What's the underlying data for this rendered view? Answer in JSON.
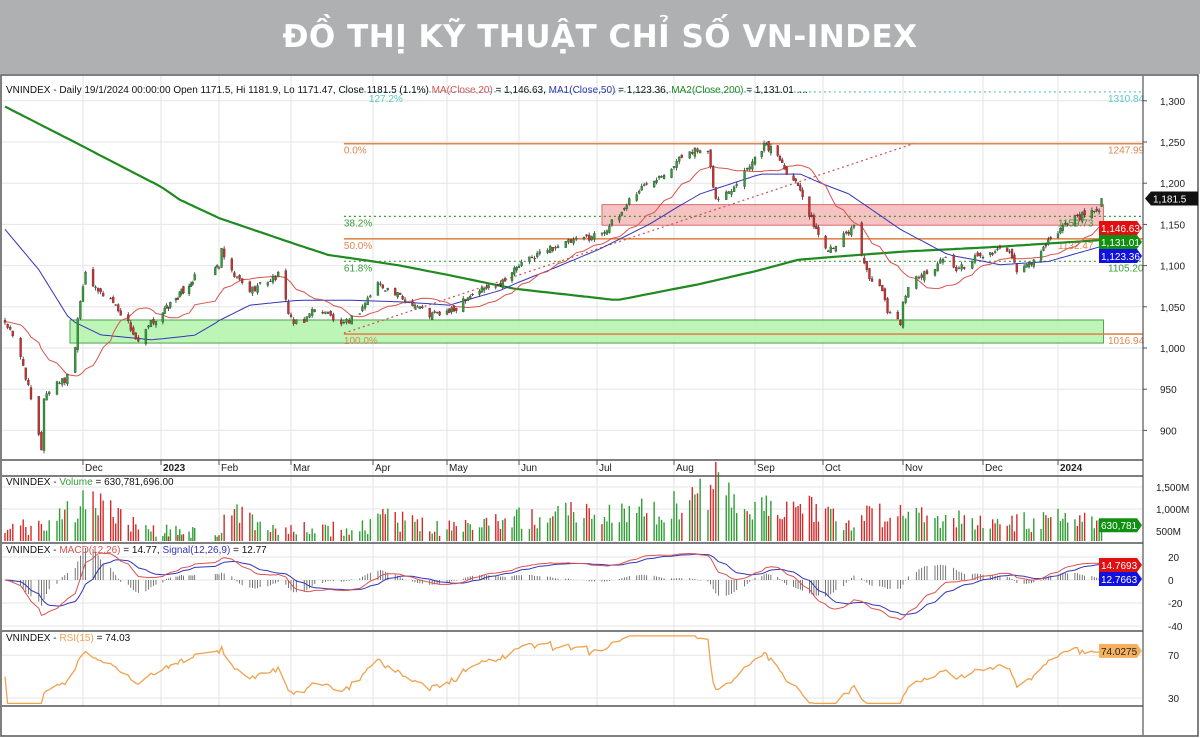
{
  "banner": {
    "title": "ĐỒ THỊ KỸ THUẬT CHỈ SỐ VN-INDEX"
  },
  "colors": {
    "up": "#2f9e35",
    "down": "#d42a2a",
    "ma20": "#d9534f",
    "ma50": "#3434b8",
    "ma200": "#1f8a1f",
    "fib_solid": "#e0864f",
    "fib_dotted": "#3a9a3a",
    "fib_ext": "#5cc8c8",
    "rsi": "#f0a24e",
    "zone_green": "#b6f5b0",
    "zone_red": "#f6bcbc"
  },
  "x_axis": {
    "months": [
      "Dec",
      "2023",
      "Feb",
      "Mar",
      "Apr",
      "May",
      "Jun",
      "Jul",
      "Aug",
      "Sep",
      "Oct",
      "Nov",
      "Dec",
      "2024"
    ]
  },
  "price_panel": {
    "legend": {
      "prefix": "VNINDEX - Daily 19/1/2024 00:00:00 Open 1171.5, Hi 1181.9, Lo 1171.47, Close 1181.5 (1.1%) ",
      "ma": "MA(Close,20)",
      "ma_value": " = 1,146.63, ",
      "ma1": "MA1(Close,50)",
      "ma1_value": " = 1,123.36, ",
      "ma2": "MA2(Close,200)",
      "ma2_value": " = 1,131.01 ...."
    },
    "y_ticks": [
      "1,300",
      "1,250",
      "1,200",
      "1,150",
      "1,100",
      "1,050",
      "1,000",
      "950",
      "900"
    ],
    "tags": {
      "close": "1,181.5",
      "ma20": "1,146.63",
      "ma200": "1,131.01",
      "ma50": "1,123.36"
    }
  },
  "volume_panel": {
    "legend": {
      "prefix": "VNINDEX - ",
      "name": "Volume",
      "value": " = 630,781,696.00"
    },
    "y_ticks": [
      "1,500M",
      "1,000M",
      "500M"
    ],
    "tag": "630,781"
  },
  "macd_panel": {
    "legend": {
      "prefix": "VNINDEX - ",
      "macd": "MACD(12,26)",
      "macd_value": " = 14.77, ",
      "signal": "Signal(12,26,9)",
      "signal_value": " = 12.77"
    },
    "y_ticks": [
      "20",
      "0",
      "-20",
      "-40"
    ],
    "tags": {
      "macd": "14.7693",
      "signal": "12.7663"
    }
  },
  "rsi_panel": {
    "legend": {
      "prefix": "VNINDEX - ",
      "name": "RSI(15)",
      "value": " = 74.03"
    },
    "y_ticks": [
      "70",
      "30"
    ],
    "tag": "74.0275"
  },
  "chart_data": [
    {
      "type": "candlestick",
      "title": "VNINDEX - Daily",
      "x_range": [
        "2022-11-01",
        "2024-01-19"
      ],
      "ylim": [
        870,
        1320
      ],
      "grid": true,
      "last_bar": {
        "date": "2024-01-19",
        "open": 1171.5,
        "high": 1181.9,
        "low": 1171.47,
        "close": 1181.5
      },
      "close_path": [
        [
          "2022-11-01",
          1032
        ],
        [
          "2022-11-03",
          1020
        ],
        [
          "2022-11-08",
          980
        ],
        [
          "2022-11-15",
          878
        ],
        [
          "2022-11-16",
          940
        ],
        [
          "2022-11-21",
          960
        ],
        [
          "2022-11-24",
          960
        ],
        [
          "2022-11-28",
          1000
        ],
        [
          "2022-11-29",
          1040
        ],
        [
          "2022-12-02",
          1095
        ],
        [
          "2022-12-06",
          1070
        ],
        [
          "2022-12-12",
          1060
        ],
        [
          "2022-12-19",
          1030
        ],
        [
          "2022-12-23",
          1005
        ],
        [
          "2022-12-28",
          1030
        ],
        [
          "2023-01-03",
          1046
        ],
        [
          "2023-01-09",
          1060
        ],
        [
          "2023-01-19",
          1085
        ],
        [
          "2023-02-01",
          1100
        ],
        [
          "2023-02-02",
          1117
        ],
        [
          "2023-02-06",
          1090
        ],
        [
          "2023-02-13",
          1070
        ],
        [
          "2023-02-16",
          1075
        ],
        [
          "2023-02-24",
          1088
        ],
        [
          "2023-02-28",
          1045
        ],
        [
          "2023-03-02",
          1030
        ],
        [
          "2023-03-06",
          1030
        ],
        [
          "2023-03-08",
          1045
        ],
        [
          "2023-03-14",
          1045
        ],
        [
          "2023-03-20",
          1025
        ],
        [
          "2023-03-27",
          1045
        ],
        [
          "2023-04-03",
          1079
        ],
        [
          "2023-04-10",
          1065
        ],
        [
          "2023-04-17",
          1055
        ],
        [
          "2023-04-24",
          1040
        ],
        [
          "2023-05-04",
          1045
        ],
        [
          "2023-05-08",
          1060
        ],
        [
          "2023-05-15",
          1070
        ],
        [
          "2023-05-24",
          1080
        ],
        [
          "2023-06-01",
          1100
        ],
        [
          "2023-06-09",
          1115
        ],
        [
          "2023-06-16",
          1125
        ],
        [
          "2023-06-23",
          1130
        ],
        [
          "2023-07-03",
          1140
        ],
        [
          "2023-07-10",
          1160
        ],
        [
          "2023-07-14",
          1180
        ],
        [
          "2023-07-21",
          1200
        ],
        [
          "2023-07-31",
          1220
        ],
        [
          "2023-08-07",
          1241
        ],
        [
          "2023-08-14",
          1235
        ],
        [
          "2023-08-17",
          1180
        ],
        [
          "2023-08-22",
          1190
        ],
        [
          "2023-08-28",
          1215
        ],
        [
          "2023-09-05",
          1247
        ],
        [
          "2023-09-11",
          1235
        ],
        [
          "2023-09-15",
          1215
        ],
        [
          "2023-09-21",
          1195
        ],
        [
          "2023-09-25",
          1160
        ],
        [
          "2023-09-27",
          1150
        ],
        [
          "2023-10-02",
          1120
        ],
        [
          "2023-10-05",
          1125
        ],
        [
          "2023-10-11",
          1140
        ],
        [
          "2023-10-13",
          1150
        ],
        [
          "2023-10-19",
          1080
        ],
        [
          "2023-10-23",
          1075
        ],
        [
          "2023-10-26",
          1046
        ],
        [
          "2023-10-31",
          1030
        ],
        [
          "2023-11-01",
          1060
        ],
        [
          "2023-11-06",
          1085
        ],
        [
          "2023-11-10",
          1090
        ],
        [
          "2023-11-16",
          1110
        ],
        [
          "2023-11-22",
          1095
        ],
        [
          "2023-11-28",
          1110
        ],
        [
          "2023-12-04",
          1115
        ],
        [
          "2023-12-11",
          1120
        ],
        [
          "2023-12-15",
          1095
        ],
        [
          "2023-12-20",
          1100
        ],
        [
          "2023-12-26",
          1120
        ],
        [
          "2024-01-02",
          1145
        ],
        [
          "2024-01-08",
          1160
        ],
        [
          "2024-01-12",
          1160
        ],
        [
          "2024-01-18",
          1170
        ],
        [
          "2024-01-19",
          1181.5
        ]
      ],
      "ma50_path": [
        [
          "2022-11-01",
          1144
        ],
        [
          "2022-11-14",
          1095
        ],
        [
          "2022-11-26",
          1034
        ],
        [
          "2022-12-08",
          1016
        ],
        [
          "2022-12-28",
          1010
        ],
        [
          "2023-01-21",
          1016
        ],
        [
          "2023-02-13",
          1052
        ],
        [
          "2023-03-04",
          1058
        ],
        [
          "2023-03-23",
          1058
        ],
        [
          "2023-04-12",
          1056
        ],
        [
          "2023-05-02",
          1052
        ],
        [
          "2023-05-24",
          1070
        ],
        [
          "2023-06-13",
          1095
        ],
        [
          "2023-07-02",
          1120
        ],
        [
          "2023-07-22",
          1150
        ],
        [
          "2023-08-11",
          1187
        ],
        [
          "2023-09-03",
          1211
        ],
        [
          "2023-09-21",
          1211
        ],
        [
          "2023-10-11",
          1187
        ],
        [
          "2023-10-31",
          1144
        ],
        [
          "2023-11-18",
          1113
        ],
        [
          "2023-12-08",
          1101
        ],
        [
          "2023-12-28",
          1105
        ],
        [
          "2024-01-19",
          1123.36
        ]
      ],
      "ma200_path": [
        [
          "2022-11-01",
          1293
        ],
        [
          "2022-12-07",
          1235
        ],
        [
          "2023-01-11",
          1180
        ],
        [
          "2023-03-15",
          1113
        ],
        [
          "2023-04-12",
          1100
        ],
        [
          "2023-05-30",
          1072
        ],
        [
          "2023-07-09",
          1058
        ],
        [
          "2023-08-10",
          1077
        ],
        [
          "2023-09-20",
          1107
        ],
        [
          "2023-11-01",
          1117
        ],
        [
          "2023-12-08",
          1123
        ],
        [
          "2024-01-19",
          1131.01
        ]
      ],
      "ma20_last": 1146.63,
      "fibonacci": {
        "start_date": "2023-03-21",
        "levels": [
          {
            "label": "127.2%",
            "value": 1310.84,
            "value_label": "1310.84",
            "style": "ext"
          },
          {
            "label": "0.0%",
            "value": 1247.99,
            "value_label": "1247.99",
            "style": "solid"
          },
          {
            "label": "38.2%",
            "value": 1159.73,
            "value_label": "1159.73",
            "style": "dotted"
          },
          {
            "label": "50.0%",
            "value": 1132.47,
            "value_label": "1132.47",
            "style": "solid"
          },
          {
            "label": "61.8%",
            "value": 1105.2,
            "value_label": "1105.20",
            "style": "dotted"
          },
          {
            "label": "100.0%",
            "value": 1016.94,
            "value_label": "1016.94",
            "style": "solid"
          }
        ]
      },
      "zones": [
        {
          "color": "green",
          "from": "2022-11-26",
          "to": "2024-01-19",
          "low": 1006,
          "high": 1034
        },
        {
          "color": "red",
          "from": "2023-07-03",
          "to": "2024-01-19",
          "low": 1149,
          "high": 1174
        }
      ],
      "trendline": {
        "from": [
          "2023-03-21",
          1018
        ],
        "to": [
          "2023-11-05",
          1248
        ]
      }
    },
    {
      "type": "bar",
      "title": "Volume",
      "unit": "M",
      "last_value": 630.781696,
      "volume_path": [
        [
          "2022-11-01",
          500
        ],
        [
          "2022-11-15",
          700
        ],
        [
          "2022-11-25",
          900
        ],
        [
          "2022-12-01",
          1100
        ],
        [
          "2022-12-05",
          1300
        ],
        [
          "2022-12-15",
          800
        ],
        [
          "2022-12-28",
          550
        ],
        [
          "2023-01-10",
          450
        ],
        [
          "2023-02-01",
          500
        ],
        [
          "2023-02-06",
          900
        ],
        [
          "2023-02-20",
          550
        ],
        [
          "2023-03-10",
          600
        ],
        [
          "2023-03-25",
          500
        ],
        [
          "2023-04-05",
          800
        ],
        [
          "2023-04-25",
          550
        ],
        [
          "2023-05-15",
          600
        ],
        [
          "2023-06-01",
          800
        ],
        [
          "2023-06-15",
          900
        ],
        [
          "2023-07-01",
          850
        ],
        [
          "2023-07-20",
          950
        ],
        [
          "2023-08-07",
          1100
        ],
        [
          "2023-08-17",
          1650
        ],
        [
          "2023-08-28",
          900
        ],
        [
          "2023-09-10",
          1000
        ],
        [
          "2023-09-25",
          1100
        ],
        [
          "2023-10-10",
          750
        ],
        [
          "2023-10-26",
          900
        ],
        [
          "2023-11-10",
          850
        ],
        [
          "2023-11-25",
          700
        ],
        [
          "2023-12-10",
          650
        ],
        [
          "2023-12-26",
          750
        ],
        [
          "2024-01-08",
          900
        ],
        [
          "2024-01-19",
          630.781696
        ]
      ]
    },
    {
      "type": "line",
      "title": "MACD(12,26) / Signal(12,26,9)",
      "ylim": [
        -45,
        30
      ],
      "macd_last": 14.7693,
      "signal_last": 12.7663
    },
    {
      "type": "line",
      "title": "RSI(15)",
      "ylim": [
        20,
        90
      ],
      "rsi_last": 74.0275
    }
  ]
}
